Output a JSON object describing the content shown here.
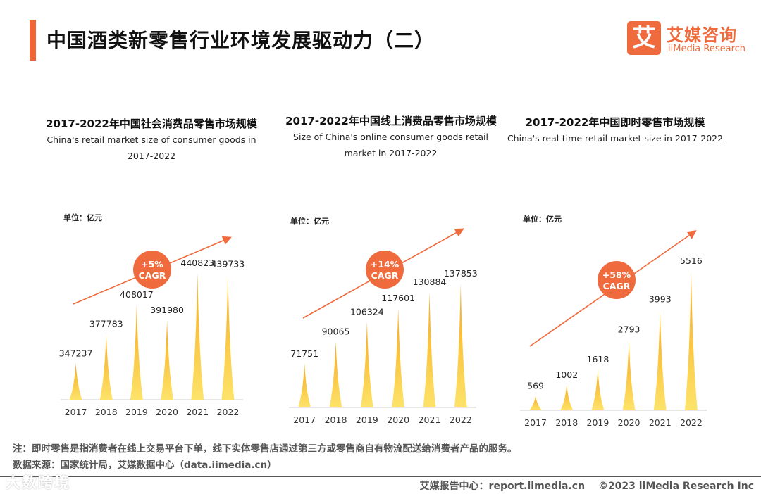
{
  "header": {
    "title": "中国酒类新零售行业环境发展驱动力（二）",
    "logo_box": "艾",
    "logo_cn": "艾媒咨询",
    "logo_en": "iiMedia Research",
    "accent": "#f0643a"
  },
  "chart_data": [
    {
      "type": "bar",
      "title": "2017-2022年中国社会消费品零售市场规模",
      "subtitle": "China's retail market size of consumer goods in 2017-2022",
      "unit": "单位：亿元",
      "cagr": "+5%",
      "cagr_label": "CAGR",
      "categories": [
        "2017",
        "2018",
        "2019",
        "2020",
        "2021",
        "2022"
      ],
      "values": [
        347237,
        377783,
        408017,
        391980,
        440823,
        439733
      ],
      "labels": [
        "347237",
        "377783",
        "408017",
        "391980",
        "440823",
        "439733"
      ]
    },
    {
      "type": "bar",
      "title": "2017-2022年中国线上消费品零售市场规模",
      "subtitle": "Size of China's online consumer goods retail market in 2017-2022",
      "unit": "单位：亿元",
      "cagr": "+14%",
      "cagr_label": "CAGR",
      "categories": [
        "2017",
        "2018",
        "2019",
        "2020",
        "2021",
        "2022"
      ],
      "values": [
        71751,
        90065,
        106324,
        117601,
        130884,
        137853
      ],
      "labels": [
        "71751",
        "90065",
        "106324",
        "117601",
        "130884",
        "137853"
      ]
    },
    {
      "type": "bar",
      "title": "2017-2022年中国即时零售市场规模",
      "subtitle": "China's real-time retail market size in 2017-2022",
      "unit": "单位：亿元",
      "cagr": "+58%",
      "cagr_label": "CAGR",
      "categories": [
        "2017",
        "2018",
        "2019",
        "2020",
        "2021",
        "2022"
      ],
      "values": [
        569,
        1002,
        1618,
        2793,
        3993,
        5516
      ],
      "labels": [
        "569",
        "1002",
        "1618",
        "2793",
        "3993",
        "5516"
      ]
    }
  ],
  "notes": {
    "note": "注：即时零售是指消费者在线上交易平台下单，线下实体零售店通过第三方或零售商自有物流配送给消费者产品的服务。",
    "source": "数据来源：国家统计局，艾媒数据中心（data.iimedia.cn）"
  },
  "footer": {
    "site": "艾媒报告中心：report.iimedia.cn",
    "copyright": "©2023  iiMedia Research  Inc",
    "watermark": "大数跨境"
  },
  "colors": {
    "bar_top": "#f7a81b",
    "bar_bottom": "#fde36a",
    "bubble": "#ef6a3c",
    "arrow": "#ef6a3c"
  }
}
